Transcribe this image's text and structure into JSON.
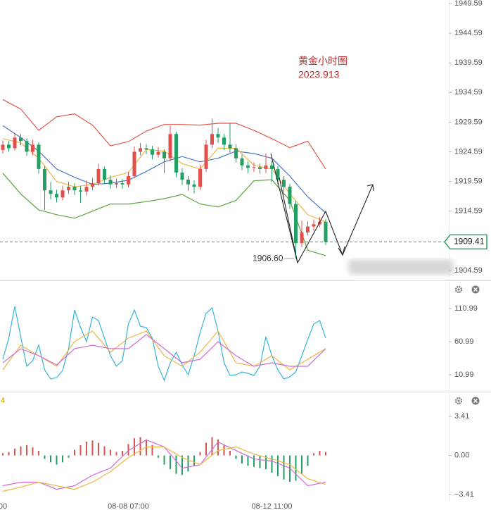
{
  "chart_data": [
    {
      "type": "candlestick",
      "title": "黄金小时图",
      "subtitle": "2023.913",
      "categories": [
        "00",
        null,
        null,
        null,
        null,
        null,
        null,
        null,
        null,
        null,
        null,
        null,
        null,
        null,
        null,
        null,
        null,
        null,
        null,
        null,
        null,
        "08-08 07:00",
        null,
        null,
        null,
        null,
        null,
        null,
        null,
        null,
        null,
        null,
        null,
        null,
        null,
        null,
        null,
        null,
        null,
        null,
        null,
        null,
        null,
        null,
        null,
        "08-12 11:00",
        null,
        null,
        null,
        null,
        null,
        null,
        null,
        null,
        null
      ],
      "open": [
        1924.9,
        1925.8,
        1925.2,
        1927.0,
        1926.4,
        1924.6,
        1925.8,
        1921.7,
        1918.1,
        1917.5,
        1916.9,
        1918.1,
        1918.7,
        1918.1,
        1917.9,
        1918.7,
        1919.3,
        1921.7,
        1919.9,
        1919.1,
        1919.3,
        1919.1,
        1920.5,
        1924.6,
        1925.2,
        1925.0,
        1924.1,
        1924.6,
        1923.5,
        1927.6,
        1921.1,
        1919.9,
        1919.1,
        1918.7,
        1921.7,
        1925.8,
        1927.6,
        1927.0,
        1925.8,
        1925.2,
        1923.5,
        1922.3,
        1921.9,
        1922.0,
        1921.7,
        1922.3,
        1921.7,
        1919.9,
        1918.7,
        1915.8,
        1909.2,
        1911.0,
        1912.0,
        1912.4,
        1912.8
      ],
      "high": [
        1926.5,
        1926.4,
        1927.8,
        1927.6,
        1926.9,
        1926.6,
        1926.2,
        1922.2,
        1919.5,
        1918.2,
        1918.9,
        1919.6,
        1919.3,
        1918.8,
        1919.8,
        1920.2,
        1922.6,
        1922.1,
        1920.6,
        1920.1,
        1920.0,
        1921.2,
        1925.5,
        1926.1,
        1925.9,
        1925.6,
        1925.4,
        1925.0,
        1929.0,
        1928.0,
        1921.8,
        1920.5,
        1919.8,
        1922.4,
        1926.6,
        1930.2,
        1928.6,
        1927.6,
        1929.4,
        1925.9,
        1924.1,
        1923.0,
        1922.8,
        1922.6,
        1924.3,
        1923.0,
        1922.2,
        1920.5,
        1919.2,
        1916.3,
        1913.0,
        1912.9,
        1913.2,
        1913.6,
        1913.3
      ],
      "low": [
        1924.3,
        1924.6,
        1924.8,
        1925.7,
        1923.9,
        1924.0,
        1920.9,
        1914.8,
        1916.6,
        1916.1,
        1916.4,
        1917.5,
        1917.3,
        1916.0,
        1917.2,
        1918.1,
        1918.9,
        1919.2,
        1918.4,
        1918.5,
        1918.4,
        1918.6,
        1920.1,
        1924.0,
        1924.2,
        1923.3,
        1923.6,
        1921.0,
        1923.0,
        1920.3,
        1919.0,
        1918.0,
        1917.6,
        1918.2,
        1921.2,
        1925.2,
        1926.1,
        1924.9,
        1924.4,
        1922.8,
        1921.5,
        1921.0,
        1921.2,
        1920.9,
        1921.0,
        1919.5,
        1919.1,
        1917.8,
        1915.0,
        1906.6,
        1908.5,
        1910.5,
        1911.3,
        1911.9,
        1908.9
      ],
      "close": [
        1925.8,
        1925.2,
        1927.0,
        1926.4,
        1924.6,
        1925.8,
        1921.7,
        1918.1,
        1917.5,
        1916.9,
        1918.1,
        1918.7,
        1918.1,
        1917.9,
        1918.7,
        1919.3,
        1921.7,
        1919.9,
        1919.1,
        1919.3,
        1919.1,
        1920.5,
        1924.6,
        1925.2,
        1925.0,
        1924.1,
        1924.6,
        1923.5,
        1927.6,
        1921.1,
        1919.9,
        1919.1,
        1918.7,
        1921.7,
        1925.8,
        1927.6,
        1927.0,
        1925.8,
        1925.2,
        1923.5,
        1922.3,
        1921.9,
        1922.0,
        1921.7,
        1922.3,
        1921.7,
        1919.9,
        1918.7,
        1915.8,
        1909.2,
        1911.0,
        1912.0,
        1912.4,
        1912.8,
        1909.41
      ],
      "up_color": "#e2504c",
      "down_color": "#22a063",
      "series": [
        {
          "color": "#e0574c",
          "x": [
            0,
            3,
            6,
            9,
            12,
            15,
            18,
            21,
            24,
            27,
            30,
            33,
            36,
            39,
            42,
            45,
            48,
            51,
            54
          ],
          "values": [
            1933.4,
            1931.8,
            1928.2,
            1930.5,
            1931.0,
            1929.1,
            1925.6,
            1926.3,
            1928.1,
            1929.2,
            1929.2,
            1929.1,
            1929.4,
            1929.4,
            1928.2,
            1926.8,
            1925.3,
            1926.4,
            1921.7
          ]
        },
        {
          "color": "#5ba33b",
          "x": [
            0,
            3,
            6,
            9,
            12,
            15,
            18,
            21,
            24,
            27,
            30,
            33,
            36,
            39,
            42,
            45,
            48,
            51,
            54
          ],
          "values": [
            1921.0,
            1917.5,
            1914.8,
            1914.0,
            1913.4,
            1914.6,
            1915.8,
            1915.8,
            1916.2,
            1916.7,
            1917.4,
            1915.8,
            1915.3,
            1916.4,
            1919.7,
            1919.9,
            1916.4,
            1908.0,
            1907.1
          ]
        },
        {
          "color": "#4a78c2",
          "x": [
            0,
            3,
            6,
            9,
            12,
            15,
            18,
            21,
            24,
            27,
            30,
            33,
            36,
            39,
            42,
            45,
            48,
            51,
            54
          ],
          "values": [
            1929.0,
            1927.0,
            1924.7,
            1921.7,
            1920.3,
            1919.1,
            1919.3,
            1919.8,
            1921.3,
            1922.9,
            1923.8,
            1922.9,
            1923.5,
            1924.7,
            1924.3,
            1923.5,
            1920.5,
            1917.0,
            1914.3
          ]
        },
        {
          "color": "#f0b540",
          "x": [
            0,
            3,
            6,
            9,
            12,
            15,
            18,
            21,
            24,
            27,
            30,
            33,
            36,
            39,
            42,
            45,
            48,
            51,
            54
          ],
          "values": [
            1926.8,
            1926.1,
            1923.5,
            1919.6,
            1918.7,
            1919.1,
            1920.3,
            1921.1,
            1925.0,
            1924.7,
            1922.6,
            1921.7,
            1925.2,
            1925.2,
            1922.3,
            1921.7,
            1917.5,
            1914.0,
            1912.8
          ]
        }
      ],
      "last_price": 1909.41,
      "last_price_color": "#2a9d61",
      "low_label": {
        "x": 49,
        "value": 1906.6,
        "label": "1906.60"
      },
      "ylim": [
        1902.93,
        1950.18
      ],
      "yticks": [
        1949.59,
        1944.59,
        1939.59,
        1934.59,
        1929.59,
        1924.59,
        1919.59,
        1914.59,
        1904.59
      ]
    },
    {
      "type": "line",
      "series": [
        {
          "color": "#36b4dc",
          "x": [
            0,
            1,
            2,
            3,
            4,
            5,
            6,
            7,
            8,
            9,
            10,
            11,
            12,
            13,
            14,
            15,
            16,
            17,
            18,
            19,
            20,
            21,
            22,
            23,
            24,
            25,
            26,
            27,
            28,
            29,
            30,
            31,
            32,
            33,
            34,
            35,
            36,
            37,
            38,
            39,
            40,
            41,
            42,
            43,
            44,
            45,
            46,
            47,
            48,
            49,
            50,
            51,
            52,
            53,
            54
          ],
          "values": [
            34.4,
            66.3,
            114.2,
            68.4,
            23.7,
            32.3,
            55.7,
            18.4,
            4.6,
            6.7,
            17.4,
            50.3,
            108.8,
            82.3,
            61.0,
            98.2,
            92.9,
            66.3,
            39.7,
            23.7,
            32.3,
            87.6,
            108.8,
            84.4,
            82.3,
            66.3,
            23.7,
            2.5,
            29.1,
            45.0,
            25.9,
            11.0,
            39.7,
            74.8,
            103.5,
            112.0,
            76.9,
            29.1,
            9.9,
            11.0,
            15.2,
            13.1,
            9.9,
            23.7,
            68.4,
            39.7,
            18.4,
            4.6,
            7.8,
            15.2,
            39.7,
            64.2,
            87.6,
            92.9,
            66.3
          ]
        },
        {
          "color": "#f0b540",
          "x": [
            0,
            3,
            6,
            9,
            12,
            15,
            18,
            21,
            24,
            27,
            30,
            33,
            36,
            39,
            42,
            45,
            48,
            51,
            54
          ],
          "values": [
            18.4,
            55.7,
            39.7,
            23.7,
            61.0,
            76.9,
            45.0,
            66.3,
            76.9,
            39.7,
            23.7,
            45.0,
            76.9,
            29.1,
            23.7,
            39.7,
            18.4,
            34.4,
            50.3
          ]
        },
        {
          "color": "#d26ad6",
          "x": [
            0,
            3,
            6,
            9,
            12,
            15,
            18,
            21,
            24,
            27,
            30,
            33,
            36,
            39,
            42,
            45,
            48,
            51,
            54
          ],
          "values": [
            29.1,
            50.3,
            39.7,
            25.9,
            50.3,
            55.7,
            50.3,
            50.3,
            71.6,
            50.3,
            29.1,
            34.4,
            61.0,
            39.7,
            23.7,
            29.1,
            23.7,
            23.7,
            50.3
          ]
        }
      ],
      "ylim": [
        -13.5,
        151.4
      ],
      "yticks": [
        110.99,
        60.99,
        10.99
      ]
    },
    {
      "type": "macd",
      "label": "4",
      "label_color": "#e6b800",
      "values": [
        0.2,
        0.3,
        0.6,
        0.8,
        0.9,
        0.7,
        0.4,
        -0.3,
        -0.6,
        -0.8,
        -0.6,
        -0.2,
        0.5,
        0.9,
        1.2,
        1.3,
        1.1,
        0.8,
        0.5,
        0.3,
        0.4,
        1.0,
        1.5,
        1.6,
        1.4,
        0.9,
        -0.2,
        -0.8,
        -1.2,
        -1.6,
        -1.7,
        -1.4,
        -0.9,
        0.3,
        1.1,
        1.6,
        1.4,
        0.9,
        0.4,
        -0.3,
        -0.7,
        -0.9,
        -1.0,
        -1.1,
        -1.2,
        -1.5,
        -1.8,
        -2.1,
        -2.3,
        -2.2,
        -1.6,
        -0.9,
        0.2,
        0.4,
        0.3
      ],
      "up_color": "#d9534f",
      "down_color": "#22a063",
      "series": [
        {
          "color": "#d26ad6",
          "x": [
            0,
            3,
            6,
            9,
            12,
            15,
            18,
            21,
            24,
            27,
            30,
            33,
            36,
            39,
            42,
            45,
            48,
            51,
            54
          ],
          "values": [
            -2.64,
            -2.33,
            -2.33,
            -2.95,
            -2.64,
            -1.72,
            -1.11,
            0.43,
            1.35,
            0.74,
            -1.11,
            -0.8,
            1.17,
            0.43,
            -0.31,
            -0.49,
            -1.11,
            -2.64,
            -2.33
          ]
        },
        {
          "color": "#f0b540",
          "x": [
            0,
            3,
            6,
            9,
            12,
            15,
            18,
            21,
            24,
            27,
            30,
            33,
            36,
            39,
            42,
            45,
            48,
            51,
            54
          ],
          "values": [
            -3.13,
            -2.76,
            -2.33,
            -2.64,
            -2.95,
            -2.33,
            -1.41,
            -0.18,
            0.74,
            0.74,
            -0.18,
            -0.8,
            0.43,
            0.74,
            0.12,
            -0.31,
            -0.8,
            -2.03,
            -2.52
          ]
        }
      ],
      "ylim": [
        -4.02,
        5.44
      ],
      "yticks": [
        3.41,
        {
          "value": 0,
          "label": "0.00"
        },
        {
          "value": -3.41,
          "label": "−3.41"
        }
      ]
    }
  ]
}
